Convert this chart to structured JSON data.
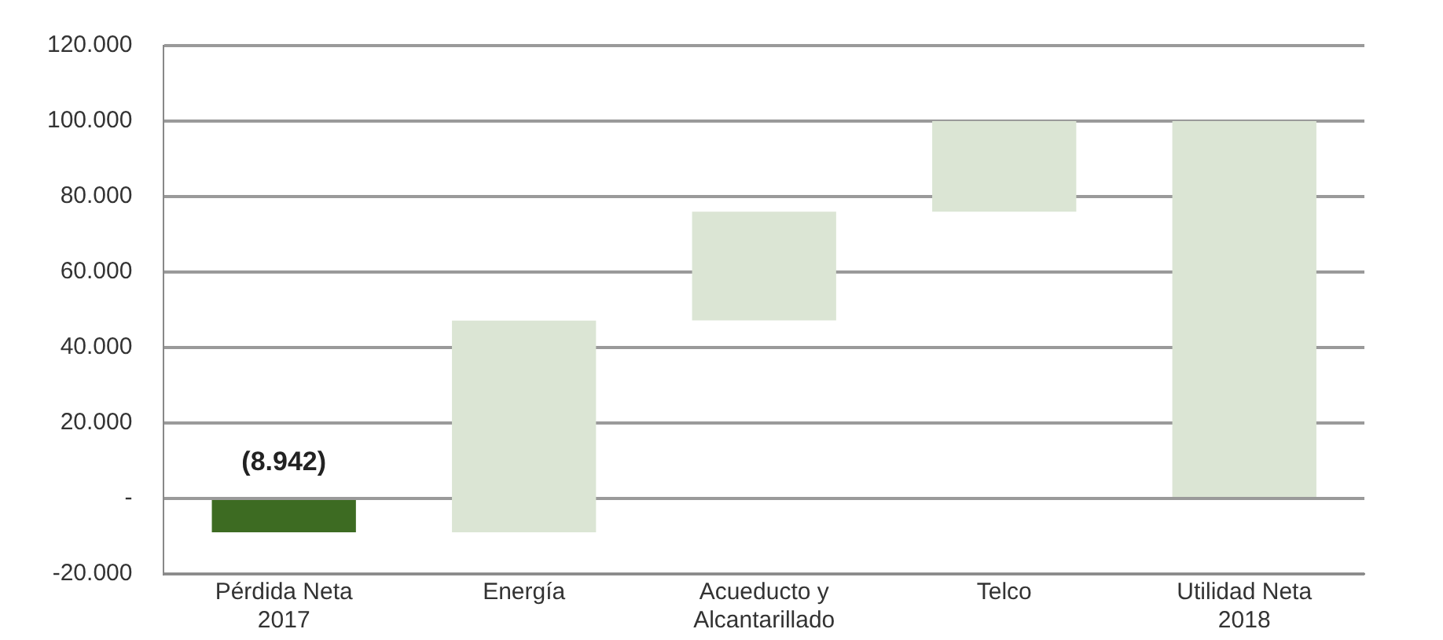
{
  "chart_data": {
    "type": "bar",
    "categories": [
      "Pérdida Neta 2017",
      "Energía",
      "Acueducto y Alcantarillado",
      "Telco",
      "Utilidad Neta 2018"
    ],
    "base": [
      0,
      -8942,
      47200,
      76000,
      0
    ],
    "values": [
      -8942,
      56100,
      28800,
      24000,
      100000
    ],
    "colors": [
      "#3d6b22",
      "#dbe5d4",
      "#dbe5d4",
      "#dbe5d4",
      "#dbe5d4"
    ],
    "value_labels": [
      "(8.942)",
      null,
      null,
      null,
      null
    ],
    "ylim": [
      -20000,
      120000
    ],
    "yticks": [
      {
        "value": -20000,
        "label": "-20.000"
      },
      {
        "value": 0,
        "label": "-"
      },
      {
        "value": 20000,
        "label": "20.000"
      },
      {
        "value": 40000,
        "label": "40.000"
      },
      {
        "value": 60000,
        "label": "60.000"
      },
      {
        "value": 80000,
        "label": "80.000"
      },
      {
        "value": 100000,
        "label": "100.000"
      },
      {
        "value": 120000,
        "label": "120.000"
      }
    ],
    "grid": "y"
  }
}
